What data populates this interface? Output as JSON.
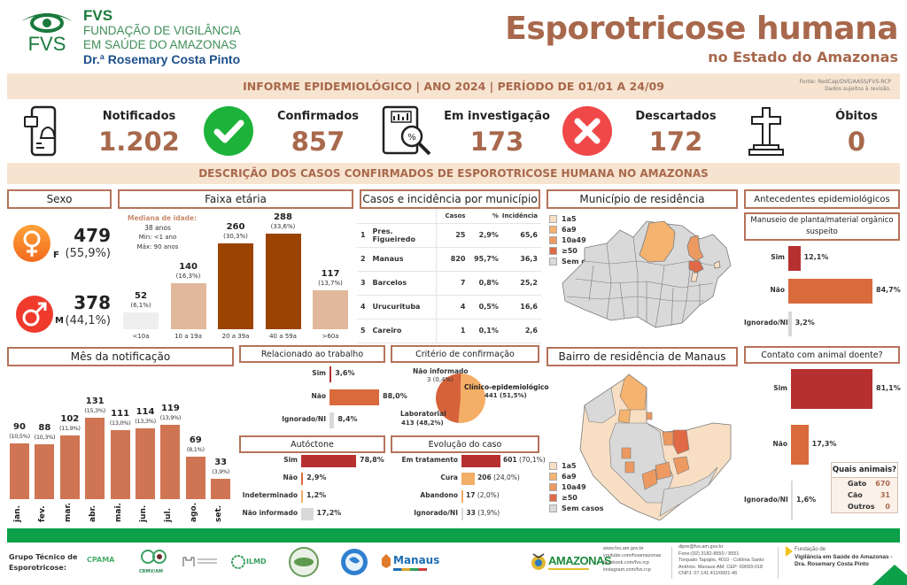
{
  "header": {
    "org_short": "FVS",
    "org_line1": "FUNDAÇÃO DE VIGILÂNCIA",
    "org_line2": "EM SAÚDE DO AMAZONAS",
    "org_line3": "Dr.ª Rosemary Costa Pinto",
    "logo_text": "FVS",
    "title": "Esporotricose humana",
    "subtitle": "no Estado do Amazonas",
    "info_band": "INFORME EPIDEMIOLÓGICO | ANO 2024 | PERÍODO DE 01/01 A 24/09",
    "source_line1": "Fonte: RedCap/DVE/AASS/FVS-RCP",
    "source_line2": "Dados sujeitos à revisão.",
    "section_band": "DESCRIÇÃO DOS CASOS CONFIRMADOS DE ESPOROTRICOSE HUMANA NO AMAZONAS"
  },
  "kpis": [
    {
      "label": "Notificados",
      "value": "1.202",
      "icon": "phone-notification-icon"
    },
    {
      "label": "Confirmados",
      "value": "857",
      "icon": "check-circle-icon"
    },
    {
      "label": "Em investigação",
      "value": "173",
      "icon": "report-magnifier-icon"
    },
    {
      "label": "Descartados",
      "value": "172",
      "icon": "x-circle-icon"
    },
    {
      "label": "Óbitos",
      "value": "0",
      "icon": "cross-grave-icon"
    }
  ],
  "colors": {
    "brand_brown": "#a8684c",
    "band_bg": "#f7e4d0",
    "dark_red": "#b73030",
    "orange": "#d96a3c",
    "light_orange": "#f2ad66",
    "grey": "#d9d9d9",
    "dark_brown": "#9b4300",
    "tan": "#e1b89b",
    "footer_green": "#0ca049"
  },
  "sexo": {
    "title": "Sexo",
    "female": {
      "letter": "F",
      "count": "479",
      "pct": "(55,9%)"
    },
    "male": {
      "letter": "M",
      "count": "378",
      "pct": "(44,1%)"
    }
  },
  "chart_data": [
    {
      "id": "faixa_etaria",
      "type": "bar",
      "title": "Faixa etária",
      "categories": [
        "<10a",
        "10 a 19a",
        "20 a 39a",
        "40 a 59a",
        ">60a"
      ],
      "values": [
        52,
        140,
        260,
        288,
        117
      ],
      "labels": [
        "(6,1%)",
        "(16,3%)",
        "(30,3%)",
        "(33,6%)",
        "(13,7%)"
      ],
      "colors": [
        "#eeeeee",
        "#e1b89b",
        "#9b4300",
        "#9b4300",
        "#e1b89b"
      ],
      "annotation": {
        "heading": "Mediana de idade:",
        "median": "38 anos",
        "min": "Min: <1 ano",
        "max": "Máx: 90 anos"
      },
      "ylim": [
        0,
        300
      ]
    },
    {
      "id": "mes_notificacao",
      "type": "bar",
      "title": "Mês da notificação",
      "categories": [
        "jan.",
        "fev.",
        "mar.",
        "abr.",
        "mai.",
        "jun.",
        "jul.",
        "ago.",
        "set."
      ],
      "values": [
        90,
        88,
        102,
        131,
        111,
        114,
        119,
        69,
        33
      ],
      "labels": [
        "(10,5%)",
        "(10,3%)",
        "(11,9%)",
        "(15,3%)",
        "(13,0%)",
        "(13,3%)",
        "(13,9%)",
        "(8,1%)",
        "(3,9%)"
      ],
      "color": "#cf7553",
      "ylim": [
        0,
        140
      ]
    },
    {
      "id": "relacionado_trabalho",
      "type": "bar",
      "orientation": "horizontal",
      "title": "Relacionado ao trabalho",
      "categories": [
        "Sim",
        "Não",
        "Ignorado/NI"
      ],
      "values": [
        3.6,
        88.0,
        8.4
      ],
      "labels": [
        "3,6%",
        "88,0%",
        "8,4%"
      ],
      "colors": [
        "#b73030",
        "#d96a3c",
        "#d9d9d9"
      ]
    },
    {
      "id": "criterio_confirmacao",
      "type": "pie",
      "title": "Critério de confirmação",
      "categories": [
        "Clínico-epidemiológico",
        "Laboratorial",
        "Não informado"
      ],
      "values": [
        441,
        413,
        3
      ],
      "labels": [
        "441 (51,5%)",
        "413 (48,2%)",
        "3 (0,4%)"
      ],
      "colors": [
        "#f5ae66",
        "#d6623a",
        "#b73030"
      ]
    },
    {
      "id": "autoctone",
      "type": "bar",
      "orientation": "horizontal",
      "title": "Autóctone",
      "categories": [
        "Sim",
        "Não",
        "Indeterminado",
        "Não informado"
      ],
      "values": [
        78.8,
        2.9,
        1.2,
        17.2
      ],
      "labels": [
        "78,8%",
        "2,9%",
        "1,2%",
        "17,2%"
      ],
      "colors": [
        "#b73030",
        "#d96a3c",
        "#f2ad66",
        "#d9d9d9"
      ]
    },
    {
      "id": "evolucao_caso",
      "type": "bar",
      "orientation": "horizontal",
      "title": "Evolução do caso",
      "categories": [
        "Em tratamento",
        "Cura",
        "Abandono",
        "Ignorado/NI"
      ],
      "values": [
        601,
        206,
        17,
        33
      ],
      "counts": [
        "601",
        "206",
        "17",
        "33"
      ],
      "labels": [
        "(70,1%)",
        "(24,0%)",
        "(2,0%)",
        "(3,9%)"
      ],
      "colors": [
        "#b73030",
        "#f2ad66",
        "#f2ad66",
        "#d9d9d9"
      ]
    },
    {
      "id": "manuseio_planta",
      "type": "bar",
      "orientation": "horizontal",
      "title": "Manuseio de planta/material orgânico suspeito",
      "categories": [
        "Sim",
        "Não",
        "Ignorado/NI"
      ],
      "values": [
        12.1,
        84.7,
        3.2
      ],
      "labels": [
        "12,1%",
        "84,7%",
        "3,2%"
      ],
      "colors": [
        "#b73030",
        "#d96a3c",
        "#d9d9d9"
      ]
    },
    {
      "id": "contato_animal",
      "type": "bar",
      "orientation": "horizontal",
      "title": "Contato com animal doente?",
      "categories": [
        "Sim",
        "Não",
        "Ignorado/NI"
      ],
      "values": [
        81.1,
        17.3,
        1.6
      ],
      "labels": [
        "81,1%",
        "17,3%",
        "1,6%"
      ],
      "colors": [
        "#b73030",
        "#d96a3c",
        "#d9d9d9"
      ]
    },
    {
      "id": "casos_municipio",
      "type": "table",
      "title": "Casos e incidência por município",
      "columns": [
        "",
        "",
        "Casos",
        "%",
        "Incidência"
      ],
      "rows": [
        [
          "1",
          "Pres. Figueiredo",
          "25",
          "2,9%",
          "65,6"
        ],
        [
          "2",
          "Manaus",
          "820",
          "95,7%",
          "36,3"
        ],
        [
          "3",
          "Barcelos",
          "7",
          "0,8%",
          "25,2"
        ],
        [
          "4",
          "Urucurituba",
          "4",
          "0,5%",
          "16,6"
        ],
        [
          "5",
          "Careiro",
          "1",
          "0,1%",
          "2,6"
        ]
      ]
    }
  ],
  "maps": {
    "municipio": {
      "title": "Município de residência"
    },
    "bairro": {
      "title": "Bairro de residência de Manaus"
    },
    "legend": [
      {
        "label": "1a5",
        "color": "#f8dfc4"
      },
      {
        "label": "6a9",
        "color": "#f5b370"
      },
      {
        "label": "10a49",
        "color": "#ec9a62"
      },
      {
        "label": "≥50",
        "color": "#df6a45"
      },
      {
        "label": "Sem casos",
        "color": "#d9d9d9"
      }
    ]
  },
  "antecedentes": {
    "title": "Antecedentes epidemiológicos"
  },
  "animais": {
    "title": "Quais animais?",
    "rows": [
      {
        "label": "Gato",
        "value": "670"
      },
      {
        "label": "Cão",
        "value": "31"
      },
      {
        "label": "Outros",
        "value": "0"
      }
    ]
  },
  "footer": {
    "group_label_1": "Grupo Técnico de",
    "group_label_2": "Esporotricose:",
    "partners": [
      "CPAMA",
      "CRMV/AM",
      "Fiocruz",
      "ILMD",
      "Seal",
      "Globe",
      "Manaus"
    ],
    "state_logo": "AMAZONAS",
    "web": [
      "www.fvs.am.gov.br",
      "youtube.com/fvsamazonas",
      "facebook.com/fvs.rcp",
      "instagram.com/fvs.rcp"
    ],
    "contact": [
      "dipre@fvs.am.gov.br",
      "Fone:(92) 3182-8550 / 8551",
      "Torquato Tapajós, 4010 - Colônia Santo",
      "Antônio. Manaus-AM. CEP: 69093-018",
      "CNPJ: 07.141.411/0001-46"
    ],
    "fund_1": "Fundação de",
    "fund_2": "Vigilância em Saúde do Amazonas -",
    "fund_3": "Dra. Rosemary Costa Pinto"
  }
}
